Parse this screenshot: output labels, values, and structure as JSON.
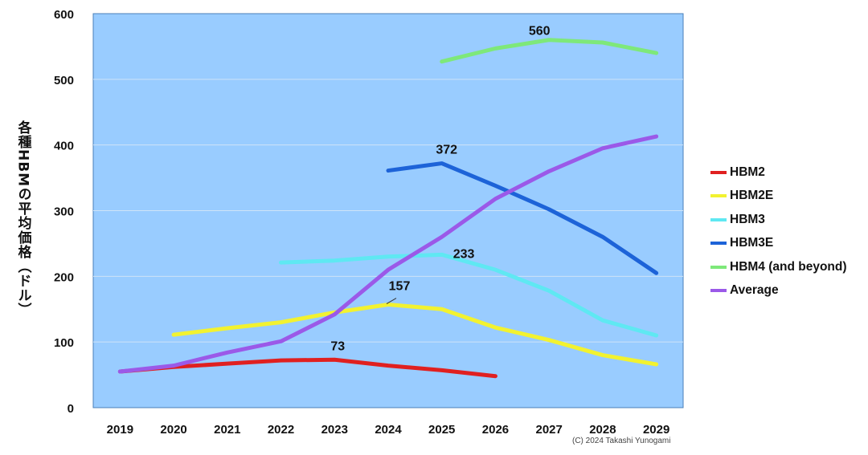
{
  "chart_data": {
    "type": "line",
    "title": "",
    "ylabel": "各種HBMの平均価格（ドル）",
    "xlabel": "",
    "categories": [
      "2019",
      "2020",
      "2021",
      "2022",
      "2023",
      "2024",
      "2025",
      "2026",
      "2027",
      "2028",
      "2029"
    ],
    "ylim": [
      0,
      600
    ],
    "yticks": [
      0,
      100,
      200,
      300,
      400,
      500,
      600
    ],
    "grid": true,
    "legend_position": "right",
    "series": [
      {
        "name": "HBM2",
        "color": "#e02020",
        "values": [
          55,
          62,
          67,
          72,
          73,
          64,
          57,
          48,
          null,
          null,
          null
        ]
      },
      {
        "name": "HBM2E",
        "color": "#f2f230",
        "values": [
          null,
          111,
          121,
          130,
          145,
          157,
          150,
          122,
          103,
          80,
          66
        ]
      },
      {
        "name": "HBM3",
        "color": "#5fe8f2",
        "values": [
          null,
          null,
          null,
          221,
          224,
          230,
          233,
          210,
          178,
          133,
          110
        ]
      },
      {
        "name": "HBM3E",
        "color": "#1d63d8",
        "values": [
          null,
          null,
          null,
          null,
          null,
          361,
          372,
          338,
          302,
          260,
          205
        ]
      },
      {
        "name": "HBM4 (and beyond)",
        "color": "#7ee87a",
        "values": [
          null,
          null,
          null,
          null,
          null,
          null,
          527,
          547,
          560,
          556,
          540
        ]
      },
      {
        "name": "Average",
        "color": "#9b59e8",
        "values": [
          55,
          64,
          84,
          101,
          142,
          210,
          260,
          318,
          360,
          395,
          413
        ]
      }
    ],
    "annotations": [
      {
        "text": "73",
        "category": "2023",
        "value": 73
      },
      {
        "text": "157",
        "category": "2024",
        "value": 157
      },
      {
        "text": "233",
        "category": "2025",
        "value": 233
      },
      {
        "text": "372",
        "category": "2025",
        "value": 372
      },
      {
        "text": "560",
        "category": "2027",
        "value": 560
      }
    ],
    "copyright": "(C) 2024 Takashi Yunogami"
  }
}
